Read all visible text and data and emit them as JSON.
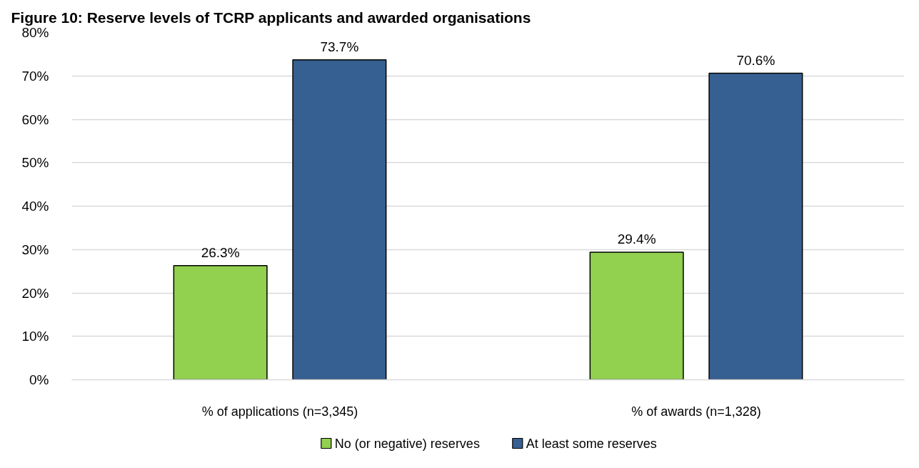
{
  "chart_data": {
    "type": "bar",
    "title": "Figure 10: Reserve levels of TCRP applicants and awarded organisations",
    "categories": [
      "% of applications (n=3,345)",
      "% of awards (n=1,328)"
    ],
    "series": [
      {
        "name": "No (or negative) reserves",
        "color": "#92d050",
        "values": [
          26.3,
          29.4
        ],
        "value_labels": [
          "26.3%",
          "29.4%"
        ]
      },
      {
        "name": "At least some reserves",
        "color": "#376092",
        "values": [
          73.7,
          70.6
        ],
        "value_labels": [
          "73.7%",
          "70.6%"
        ]
      }
    ],
    "ylim": [
      0,
      80
    ],
    "yticks": [
      {
        "value": 0,
        "label": "0%"
      },
      {
        "value": 10,
        "label": "10%"
      },
      {
        "value": 20,
        "label": "20%"
      },
      {
        "value": 30,
        "label": "30%"
      },
      {
        "value": 40,
        "label": "40%"
      },
      {
        "value": 50,
        "label": "50%"
      },
      {
        "value": 60,
        "label": "60%"
      },
      {
        "value": 70,
        "label": "70%"
      },
      {
        "value": 80,
        "label": "80%"
      }
    ],
    "grid": "y",
    "legend": "bottom"
  }
}
